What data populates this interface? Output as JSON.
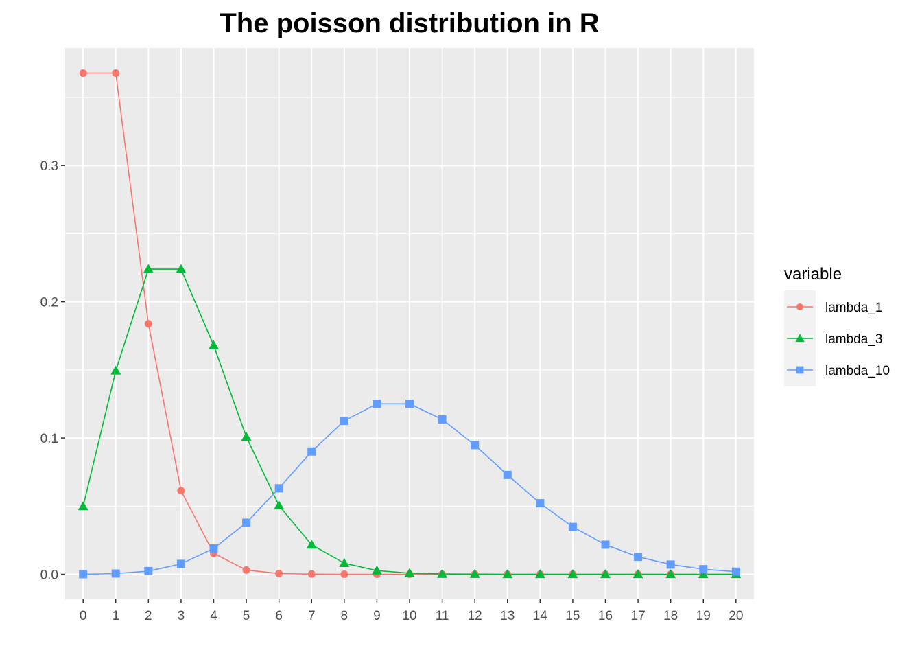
{
  "chart_data": {
    "type": "line",
    "title": "The poisson distribution in R",
    "xlabel": "",
    "ylabel": "",
    "x": [
      0,
      1,
      2,
      3,
      4,
      5,
      6,
      7,
      8,
      9,
      10,
      11,
      12,
      13,
      14,
      15,
      16,
      17,
      18,
      19,
      20
    ],
    "x_ticks": [
      "0",
      "1",
      "2",
      "3",
      "4",
      "5",
      "6",
      "7",
      "8",
      "9",
      "10",
      "11",
      "12",
      "13",
      "14",
      "15",
      "16",
      "17",
      "18",
      "19",
      "20"
    ],
    "y_ticks": [
      0.0,
      0.1,
      0.2,
      0.3
    ],
    "y_tick_labels": [
      "0.0",
      "0.1",
      "0.2",
      "0.3"
    ],
    "xlim": [
      -0.55,
      20.55
    ],
    "ylim": [
      -0.0184,
      0.3863
    ],
    "grid": true,
    "legend": {
      "title": "variable",
      "placement": "right"
    },
    "series": [
      {
        "name": "lambda_1",
        "color": "#F8766D",
        "marker": "circle",
        "values": [
          0.3679,
          0.3679,
          0.1839,
          0.0613,
          0.0153,
          0.0031,
          0.0005,
          0.0001,
          0.0,
          0.0,
          0.0,
          0.0,
          0.0,
          0.0,
          0.0,
          0.0,
          0.0,
          0.0,
          0.0,
          0.0,
          0.0
        ]
      },
      {
        "name": "lambda_3",
        "color": "#00BA38",
        "marker": "triangle",
        "values": [
          0.0498,
          0.1494,
          0.224,
          0.224,
          0.168,
          0.1008,
          0.0504,
          0.0216,
          0.0081,
          0.0027,
          0.0008,
          0.0002,
          0.0001,
          0.0,
          0.0,
          0.0,
          0.0,
          0.0,
          0.0,
          0.0,
          0.0
        ]
      },
      {
        "name": "lambda_10",
        "color": "#619CFF",
        "marker": "square",
        "values": [
          0.0,
          0.0005,
          0.0023,
          0.0076,
          0.0189,
          0.0378,
          0.0631,
          0.0901,
          0.1126,
          0.1251,
          0.1251,
          0.1137,
          0.0948,
          0.0729,
          0.0521,
          0.0347,
          0.0217,
          0.0128,
          0.0071,
          0.0037,
          0.0019
        ]
      }
    ]
  }
}
